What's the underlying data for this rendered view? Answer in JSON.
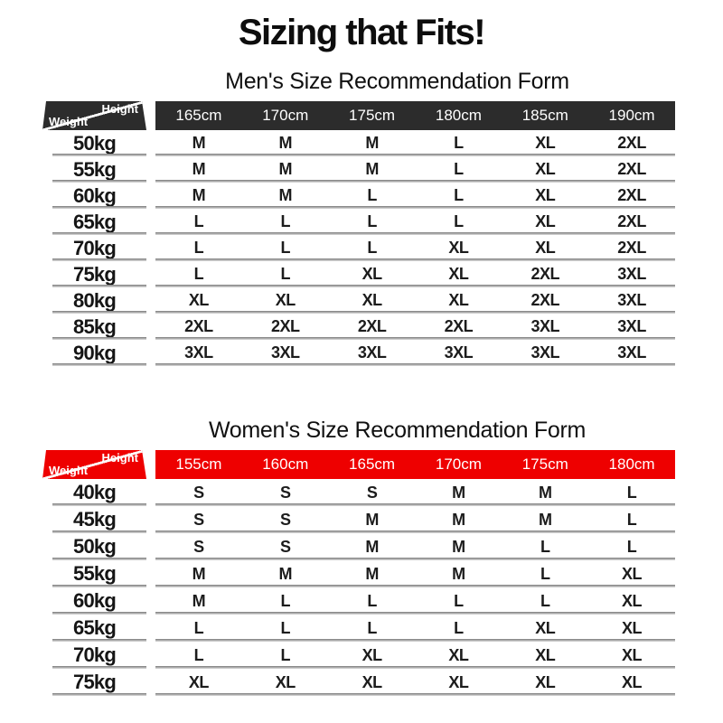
{
  "page": {
    "title": "Sizing that Fits!",
    "background": "#ffffff"
  },
  "colors": {
    "men_header_bg": "#2c2c2c",
    "women_header_bg": "#ee0000",
    "separator_gray": "#8a8a8a",
    "header_text": "#ffffff",
    "body_text": "#1c1c1c"
  },
  "tables": [
    {
      "id": "men",
      "title": "Men's Size Recommendation Form",
      "header_bg": "#2c2c2c",
      "corner": {
        "top_label": "Height",
        "bottom_label": "Weight"
      },
      "heights": [
        "165cm",
        "170cm",
        "175cm",
        "180cm",
        "185cm",
        "190cm"
      ],
      "rows": [
        {
          "weight": "50kg",
          "sizes": [
            "M",
            "M",
            "M",
            "L",
            "XL",
            "2XL"
          ]
        },
        {
          "weight": "55kg",
          "sizes": [
            "M",
            "M",
            "M",
            "L",
            "XL",
            "2XL"
          ]
        },
        {
          "weight": "60kg",
          "sizes": [
            "M",
            "M",
            "L",
            "L",
            "XL",
            "2XL"
          ]
        },
        {
          "weight": "65kg",
          "sizes": [
            "L",
            "L",
            "L",
            "L",
            "XL",
            "2XL"
          ]
        },
        {
          "weight": "70kg",
          "sizes": [
            "L",
            "L",
            "L",
            "XL",
            "XL",
            "2XL"
          ]
        },
        {
          "weight": "75kg",
          "sizes": [
            "L",
            "L",
            "XL",
            "XL",
            "2XL",
            "3XL"
          ]
        },
        {
          "weight": "80kg",
          "sizes": [
            "XL",
            "XL",
            "XL",
            "XL",
            "2XL",
            "3XL"
          ]
        },
        {
          "weight": "85kg",
          "sizes": [
            "2XL",
            "2XL",
            "2XL",
            "2XL",
            "3XL",
            "3XL"
          ]
        },
        {
          "weight": "90kg",
          "sizes": [
            "3XL",
            "3XL",
            "3XL",
            "3XL",
            "3XL",
            "3XL"
          ]
        }
      ]
    },
    {
      "id": "women",
      "title": "Women's Size Recommendation Form",
      "header_bg": "#ee0000",
      "corner": {
        "top_label": "Height",
        "bottom_label": "Weight"
      },
      "heights": [
        "155cm",
        "160cm",
        "165cm",
        "170cm",
        "175cm",
        "180cm"
      ],
      "rows": [
        {
          "weight": "40kg",
          "sizes": [
            "S",
            "S",
            "S",
            "M",
            "M",
            "L"
          ]
        },
        {
          "weight": "45kg",
          "sizes": [
            "S",
            "S",
            "M",
            "M",
            "M",
            "L"
          ]
        },
        {
          "weight": "50kg",
          "sizes": [
            "S",
            "S",
            "M",
            "M",
            "L",
            "L"
          ]
        },
        {
          "weight": "55kg",
          "sizes": [
            "M",
            "M",
            "M",
            "M",
            "L",
            "XL"
          ]
        },
        {
          "weight": "60kg",
          "sizes": [
            "M",
            "L",
            "L",
            "L",
            "L",
            "XL"
          ]
        },
        {
          "weight": "65kg",
          "sizes": [
            "L",
            "L",
            "L",
            "L",
            "XL",
            "XL"
          ]
        },
        {
          "weight": "70kg",
          "sizes": [
            "L",
            "L",
            "XL",
            "XL",
            "XL",
            "XL"
          ]
        },
        {
          "weight": "75kg",
          "sizes": [
            "XL",
            "XL",
            "XL",
            "XL",
            "XL",
            "XL"
          ]
        }
      ]
    }
  ]
}
